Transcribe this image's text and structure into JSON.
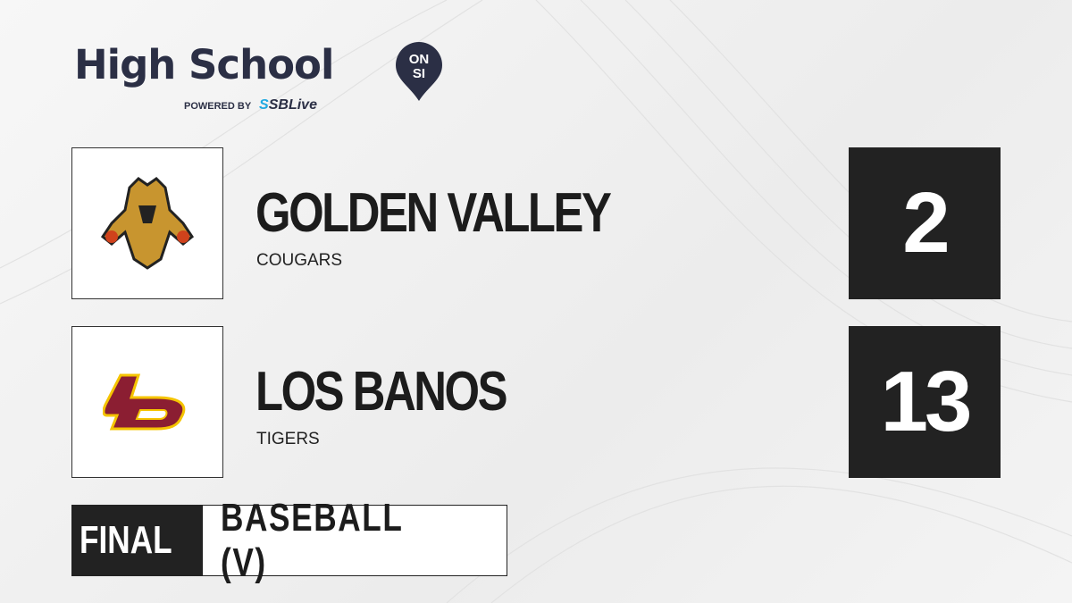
{
  "brand": {
    "title": "High School",
    "badge_top": "ON",
    "badge_bottom": "SI",
    "powered_by": "POWERED BY",
    "partner_prefix": "S",
    "partner": "SBLive"
  },
  "teams": [
    {
      "name": "GOLDEN VALLEY",
      "mascot": "COUGARS",
      "score": "2",
      "logo": "cougar-logo"
    },
    {
      "name": "LOS BANOS",
      "mascot": "TIGERS",
      "score": "13",
      "logo": "lb-logo",
      "logo_text": "LB"
    }
  ],
  "game": {
    "status": "FINAL",
    "sport": "BASEBALL (V)"
  },
  "colors": {
    "navy": "#2b2f45",
    "sblive_blue": "#1fa9e1",
    "score_bg": "#222222",
    "lb_maroon": "#8b1e32",
    "lb_gold": "#f5c400"
  }
}
